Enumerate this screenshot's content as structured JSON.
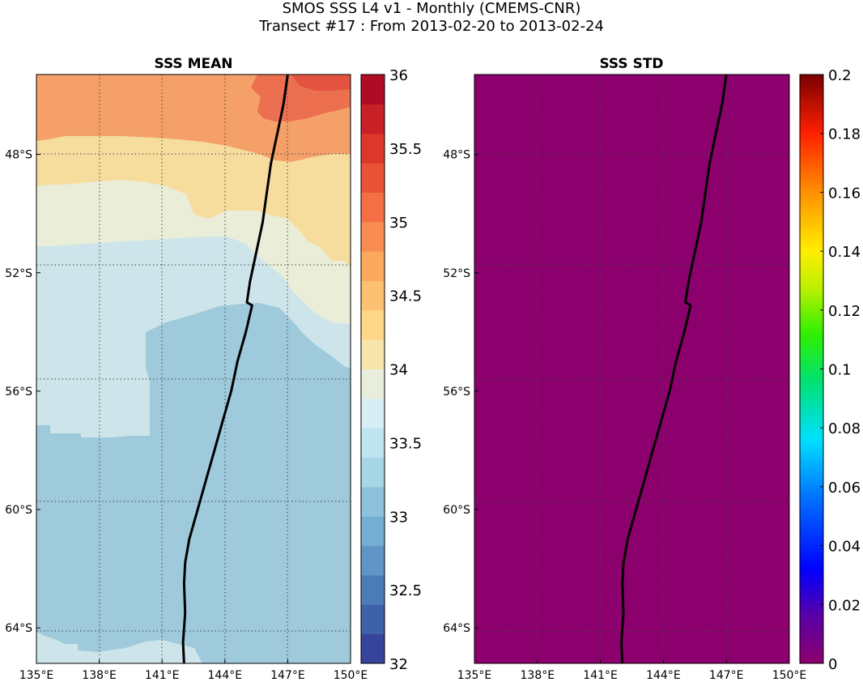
{
  "figure": {
    "title_line1": "SMOS SSS L4 v1 - Monthly (CMEMS-CNR)",
    "title_line2": "Transect #17 : From 2013-02-20 to 2013-02-24"
  },
  "chart_data": [
    {
      "type": "heatmap",
      "title": "SSS MEAN",
      "x_ticks": [
        "135°E",
        "138°E",
        "141°E",
        "144°E",
        "147°E",
        "150°E"
      ],
      "y_ticks": [
        "48°S",
        "52°S",
        "56°S",
        "60°S",
        "64°S"
      ],
      "x_range_deg_east": [
        135,
        150
      ],
      "y_range_deg_north": [
        -65.2,
        -45.3
      ],
      "grid": true,
      "colorbar": {
        "range": [
          32,
          36
        ],
        "step": 0.2,
        "tick_labels": [
          "36",
          "35.5",
          "35",
          "34.5",
          "34",
          "33.5",
          "33",
          "32.5",
          "32"
        ],
        "colormap": "RdYlBu_r"
      },
      "regions": [
        {
          "value": 34.9,
          "color": "#ec6f50",
          "description": "north-east band"
        },
        {
          "value": 34.7,
          "color": "#f4a068",
          "description": "north band"
        },
        {
          "value": 34.3,
          "color": "#f6dd9e",
          "description": "upper-middle band"
        },
        {
          "value": 34.1,
          "color": "#eaeed8",
          "description": "middle band"
        },
        {
          "value": 33.9,
          "color": "#cde5ea",
          "description": "light blue band"
        },
        {
          "value": 33.7,
          "color": "#9ecadb",
          "description": "southern water"
        }
      ],
      "transect": {
        "lon": [
          147.0,
          146.8,
          146.5,
          146.2,
          146.0,
          145.8,
          145.5,
          145.2,
          145.05,
          145.3,
          145.0,
          144.6,
          144.3,
          143.9,
          143.5,
          143.1,
          142.7,
          142.3,
          142.1,
          142.05,
          142.1,
          142.0,
          142.05
        ],
        "lat": [
          -45.3,
          -46.3,
          -47.3,
          -48.3,
          -49.3,
          -50.3,
          -51.3,
          -52.3,
          -53.0,
          -53.1,
          -54.0,
          -55.0,
          -56.0,
          -57.0,
          -58.0,
          -59.0,
          -60.0,
          -61.0,
          -61.8,
          -62.5,
          -63.5,
          -64.5,
          -65.2
        ]
      }
    },
    {
      "type": "heatmap",
      "title": "SSS STD",
      "x_ticks": [
        "135°E",
        "138°E",
        "141°E",
        "144°E",
        "147°E",
        "150°E"
      ],
      "y_ticks": [
        "48°S",
        "52°S",
        "56°S",
        "60°S",
        "64°S"
      ],
      "x_range_deg_east": [
        135,
        150
      ],
      "y_range_deg_north": [
        -65.2,
        -45.3
      ],
      "grid": true,
      "field_value": 0,
      "field_color": "#8c006e",
      "colorbar": {
        "range": [
          0,
          0.2
        ],
        "tick_labels": [
          "0.2",
          "0.18",
          "0.16",
          "0.14",
          "0.12",
          "0.1",
          "0.08",
          "0.06",
          "0.04",
          "0.02",
          "0"
        ],
        "colormap": "jet-like"
      }
    }
  ]
}
